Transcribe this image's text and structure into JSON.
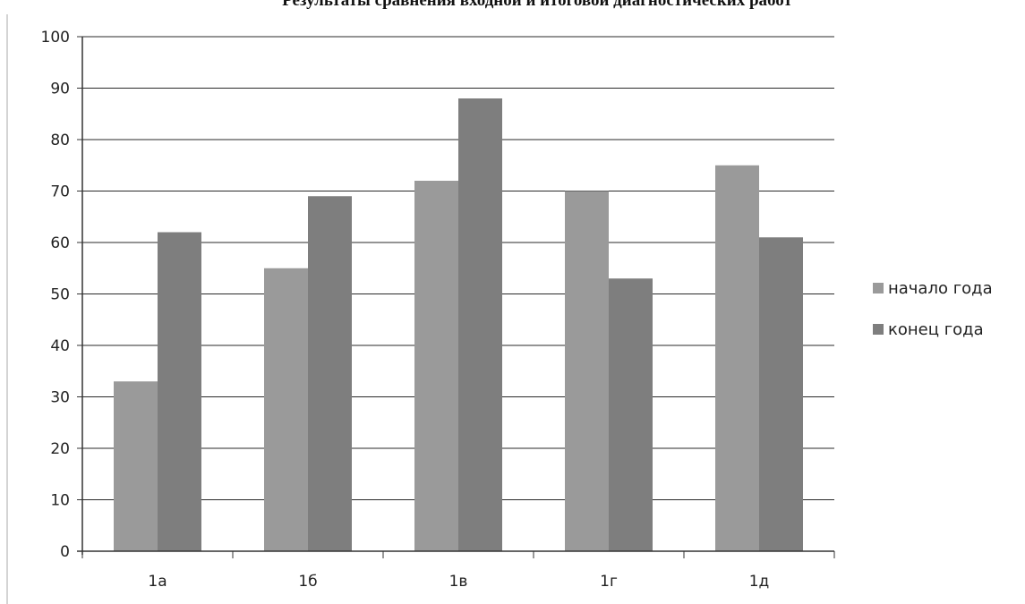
{
  "chart_data": {
    "type": "bar",
    "title": "Результаты сравнения входной и итоговой диагностических работ",
    "categories": [
      "1а",
      "1б",
      "1в",
      "1г",
      "1д"
    ],
    "series": [
      {
        "name": "начало года",
        "values": [
          33,
          55,
          72,
          70,
          75
        ]
      },
      {
        "name": "конец года",
        "values": [
          62,
          69,
          88,
          53,
          61
        ]
      }
    ],
    "xlabel": "",
    "ylabel": "",
    "ylim": [
      0,
      100
    ],
    "yticks": [
      0,
      10,
      20,
      30,
      40,
      50,
      60,
      70,
      80,
      90,
      100
    ],
    "grid": true,
    "legend": "right",
    "colors": {
      "начало года": "#9a9a9a",
      "конец года": "#7e7e7e",
      "grid": "#2a2a2a",
      "axis": "#333333"
    }
  }
}
